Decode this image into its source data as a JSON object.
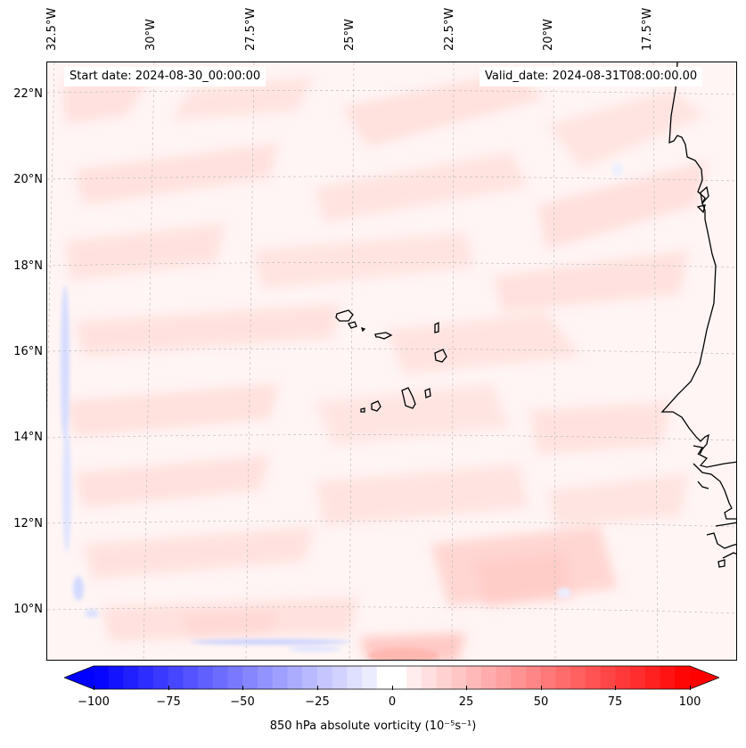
{
  "header": {
    "start_date": "Start date: 2024-08-30_00:00:00",
    "valid_date": "Valid_date: 2024-08-31T08:00:00.00"
  },
  "map": {
    "field": "850 hPa absolute vorticity",
    "lon_labels": [
      "32.5°W",
      "30°W",
      "27.5°W",
      "25°W",
      "22.5°W",
      "20°W",
      "17.5°W"
    ],
    "lat_labels": [
      "22°N",
      "20°N",
      "18°N",
      "16°N",
      "14°N",
      "12°N",
      "10°N"
    ],
    "colors": {
      "positive": "#ff0000",
      "negative": "#0000ff",
      "zero": "#ffffff",
      "coast": "#000000"
    },
    "islands": [
      "Santo Antão",
      "São Vicente",
      "São Nicolau",
      "Sal",
      "Boa Vista",
      "Maio",
      "Santiago",
      "Fogo",
      "Brava"
    ]
  },
  "colorbar": {
    "label": "850 hPa absolute vorticity (10⁻⁵s⁻¹)",
    "ticks": [
      "−100",
      "−75",
      "−50",
      "−25",
      "0",
      "25",
      "50",
      "75",
      "100"
    ],
    "min": -100,
    "max": 100,
    "extend": "both"
  }
}
